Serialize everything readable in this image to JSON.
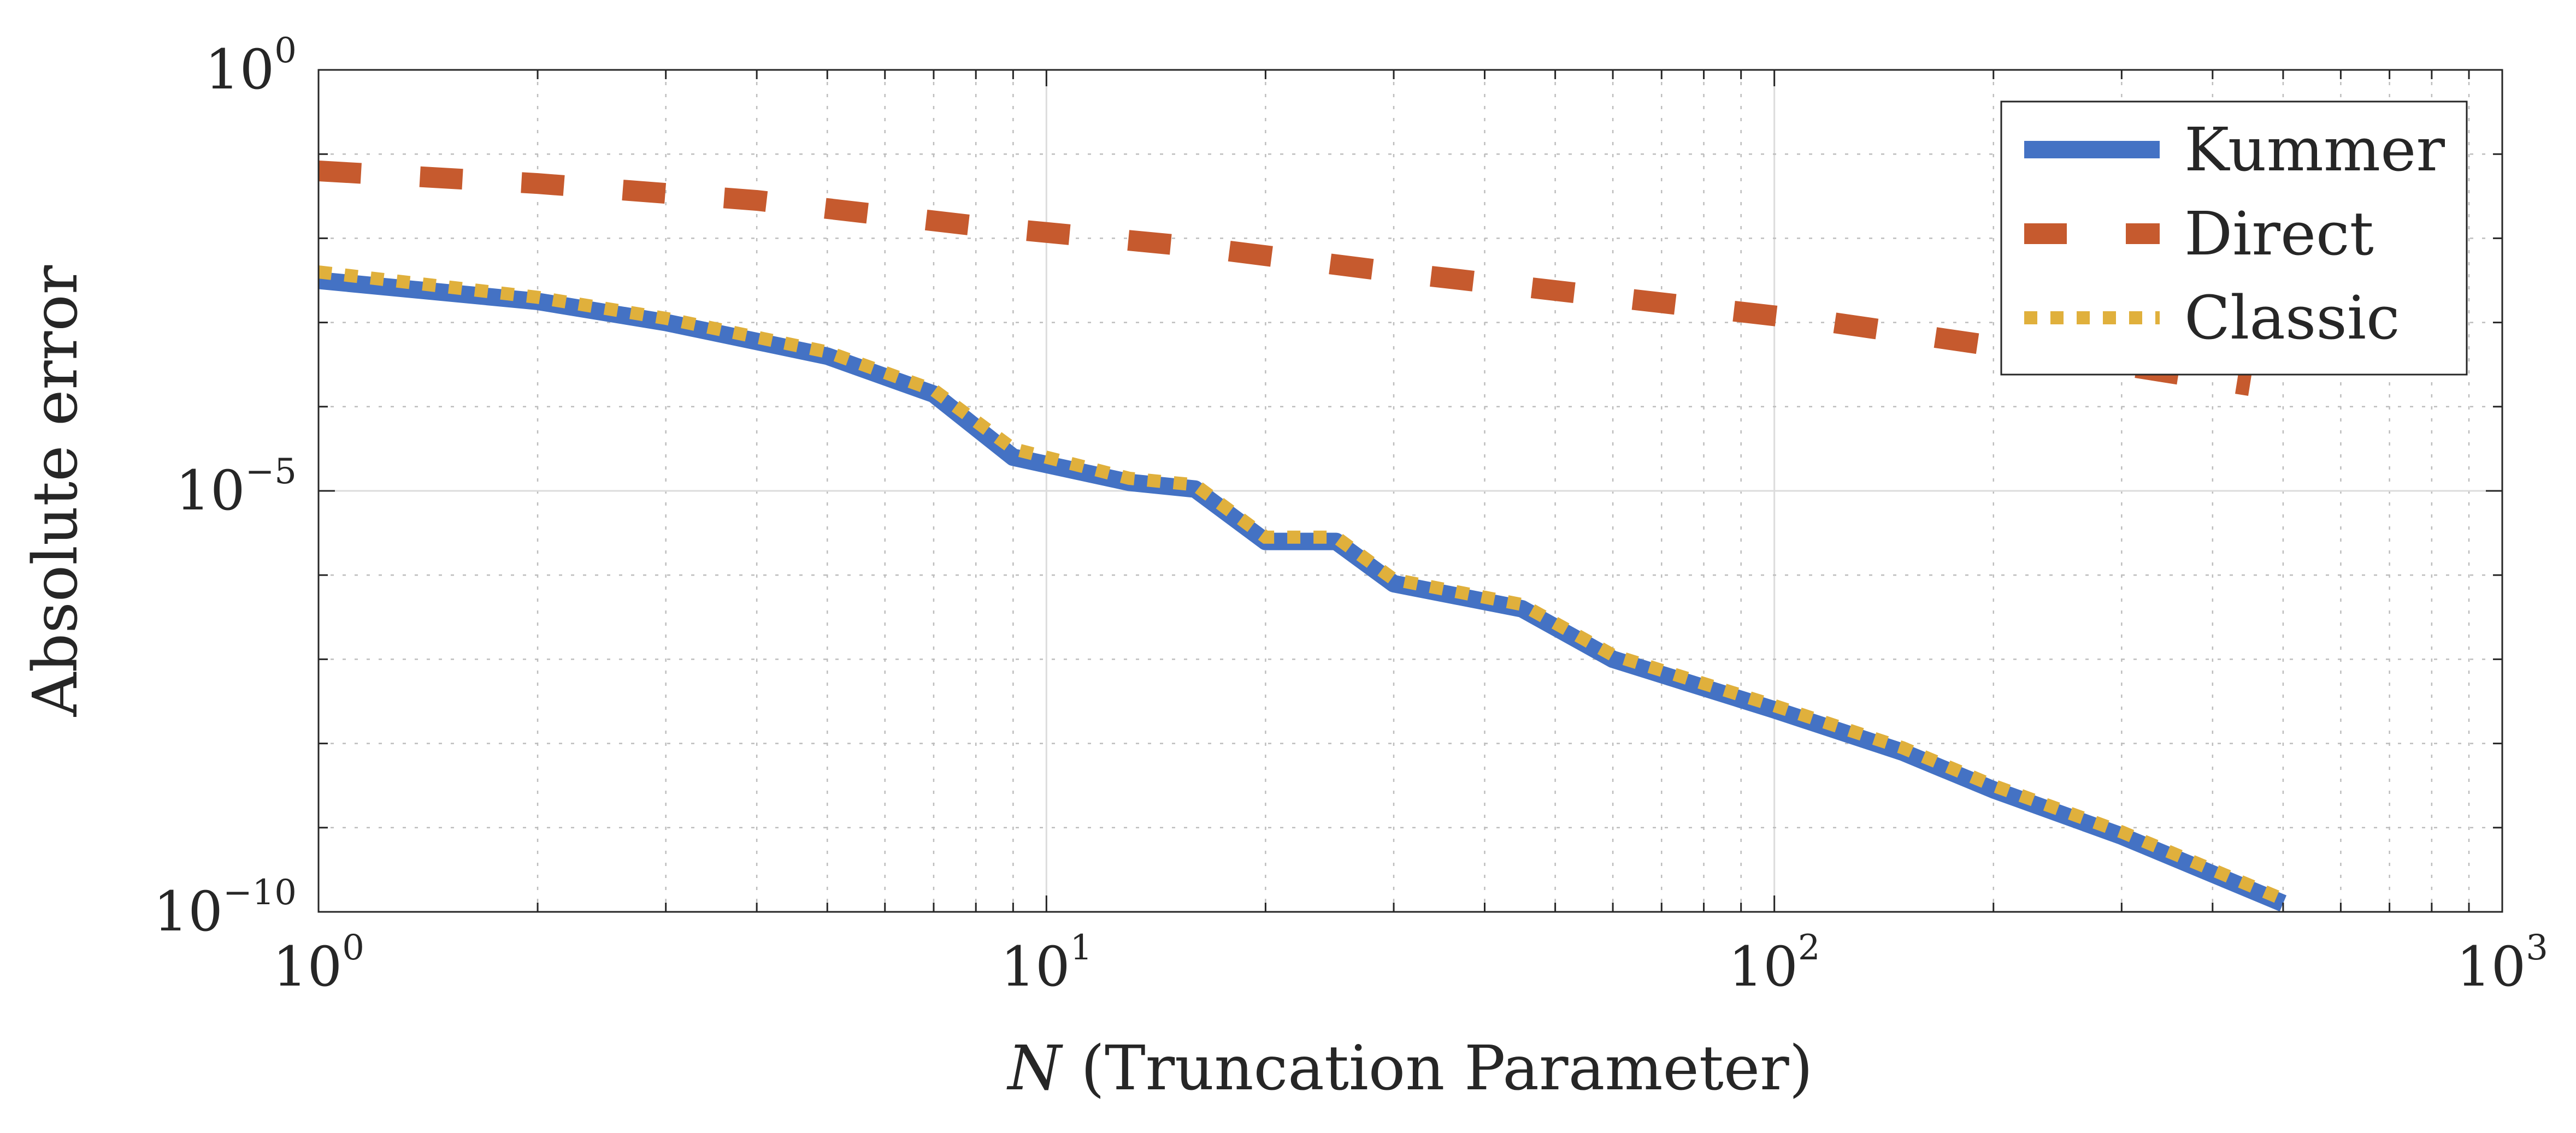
{
  "chart_data": {
    "type": "line",
    "xlabel_var": "N",
    "xlabel_rest": " (Truncation Parameter)",
    "ylabel": "Absolute error",
    "x_scale": "log",
    "y_scale": "log",
    "xlim": [
      1,
      1000
    ],
    "ylim": [
      1e-10,
      1
    ],
    "x_ticks": [
      {
        "base": "10",
        "exp": "0"
      },
      {
        "base": "10",
        "exp": "1"
      },
      {
        "base": "10",
        "exp": "2"
      },
      {
        "base": "10",
        "exp": "3"
      }
    ],
    "y_ticks": [
      {
        "base": "10",
        "exp": "0"
      },
      {
        "base": "10",
        "exp": "−5"
      },
      {
        "base": "10",
        "exp": "−10"
      }
    ],
    "grid": true,
    "legend_position": "top-right",
    "series": [
      {
        "name": "Kummer",
        "style": "solid",
        "color": "#4472C4",
        "points": [
          [
            1,
            0.00316
          ],
          [
            2,
            0.00178
          ],
          [
            3,
            0.001
          ],
          [
            5,
            0.000398
          ],
          [
            7,
            0.000141
          ],
          [
            9,
            2.51e-05
          ],
          [
            13,
            1.26e-05
          ],
          [
            16,
            1.05e-05
          ],
          [
            20,
            2.51e-06
          ],
          [
            25,
            2.51e-06
          ],
          [
            30,
            7.9e-07
          ],
          [
            45,
            3.98e-07
          ],
          [
            60,
            1e-07
          ],
          [
            100,
            2.51e-08
          ],
          [
            150,
            7.9e-09
          ],
          [
            200,
            2.82e-09
          ],
          [
            300,
            7.94e-10
          ],
          [
            400,
            2.82e-10
          ],
          [
            500,
            1.26e-10
          ]
        ]
      },
      {
        "name": "Direct",
        "style": "dashed",
        "color": "#C65A2E",
        "points": [
          [
            1,
            0.0631
          ],
          [
            2,
            0.0447
          ],
          [
            4,
            0.0282
          ],
          [
            8,
            0.0141
          ],
          [
            16,
            0.00794
          ],
          [
            30,
            0.00398
          ],
          [
            60,
            0.002
          ],
          [
            120,
            0.001
          ],
          [
            250,
            0.000398
          ],
          [
            450,
            0.000178
          ]
        ]
      },
      {
        "name": "Classic",
        "style": "dotted",
        "color": "#E0B03C",
        "points": [
          [
            1,
            0.00398
          ],
          [
            2,
            0.00199
          ],
          [
            3,
            0.00112
          ],
          [
            5,
            0.000447
          ],
          [
            7,
            0.000158
          ],
          [
            9,
            3.16e-05
          ],
          [
            13,
            1.41e-05
          ],
          [
            16,
            1.18e-05
          ],
          [
            20,
            2.82e-06
          ],
          [
            25,
            2.82e-06
          ],
          [
            30,
            8.9e-07
          ],
          [
            45,
            4.47e-07
          ],
          [
            60,
            1.12e-07
          ],
          [
            100,
            2.82e-08
          ],
          [
            150,
            8.9e-09
          ],
          [
            200,
            3.16e-09
          ],
          [
            300,
            8.9e-10
          ],
          [
            400,
            3.16e-10
          ],
          [
            500,
            1.41e-10
          ]
        ]
      }
    ]
  }
}
